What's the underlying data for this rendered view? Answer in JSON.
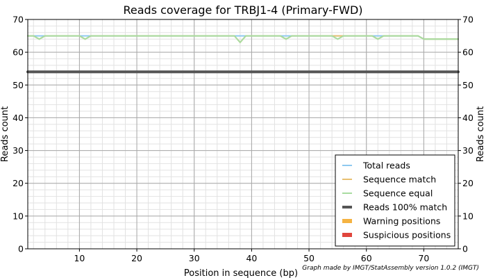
{
  "chart_data": {
    "type": "line",
    "title": "Reads coverage for TRBJ1-4 (Primary-FWD)",
    "xlabel": "Position in sequence (bp)",
    "ylabel": "Reads count",
    "ylabel_right": "Reads count",
    "xlim": [
      1,
      76
    ],
    "ylim": [
      0,
      70
    ],
    "x_ticks": [
      10,
      20,
      30,
      40,
      50,
      60,
      70
    ],
    "y_ticks": [
      0,
      10,
      20,
      30,
      40,
      50,
      60,
      70
    ],
    "x_minor_step": 2,
    "y_minor_step": 2,
    "grid": true,
    "legend_position": "bottom-right",
    "series": [
      {
        "name": "Total reads",
        "color": "#8ec9f0",
        "width": 2,
        "points": [
          [
            1,
            65
          ],
          [
            69,
            65
          ],
          [
            70,
            64
          ],
          [
            76,
            64
          ]
        ]
      },
      {
        "name": "Sequence match",
        "color": "#e8c070",
        "width": 2,
        "points": [
          [
            1,
            65
          ],
          [
            2,
            65
          ],
          [
            3,
            64
          ],
          [
            4,
            65
          ],
          [
            10,
            65
          ],
          [
            11,
            64
          ],
          [
            12,
            65
          ],
          [
            37,
            65
          ],
          [
            38,
            63
          ],
          [
            39,
            65
          ],
          [
            45,
            65
          ],
          [
            46,
            64
          ],
          [
            47,
            65
          ],
          [
            61,
            65
          ],
          [
            62,
            64
          ],
          [
            63,
            65
          ],
          [
            69,
            65
          ],
          [
            70,
            64
          ],
          [
            76,
            64
          ]
        ]
      },
      {
        "name": "Sequence equal",
        "color": "#a8dca0",
        "width": 2,
        "points": [
          [
            1,
            65
          ],
          [
            2,
            65
          ],
          [
            3,
            64
          ],
          [
            4,
            65
          ],
          [
            10,
            65
          ],
          [
            11,
            64
          ],
          [
            12,
            65
          ],
          [
            37,
            65
          ],
          [
            38,
            63
          ],
          [
            39,
            65
          ],
          [
            45,
            65
          ],
          [
            46,
            64
          ],
          [
            47,
            65
          ],
          [
            54,
            65
          ],
          [
            55,
            64
          ],
          [
            56,
            65
          ],
          [
            61,
            65
          ],
          [
            62,
            64
          ],
          [
            63,
            65
          ],
          [
            69,
            65
          ],
          [
            70,
            64
          ],
          [
            76,
            64
          ]
        ]
      },
      {
        "name": "Reads 100% match",
        "color": "#555555",
        "width": 4,
        "points": [
          [
            1,
            54
          ],
          [
            76,
            54
          ]
        ]
      },
      {
        "name": "Warning positions",
        "color": "#f5b342",
        "width": 6,
        "points": []
      },
      {
        "name": "Suspicious positions",
        "color": "#e0453c",
        "width": 6,
        "points": []
      }
    ],
    "credit": "Graph made by IMGT/StatAssembly version 1.0.2 (IMGT)"
  }
}
